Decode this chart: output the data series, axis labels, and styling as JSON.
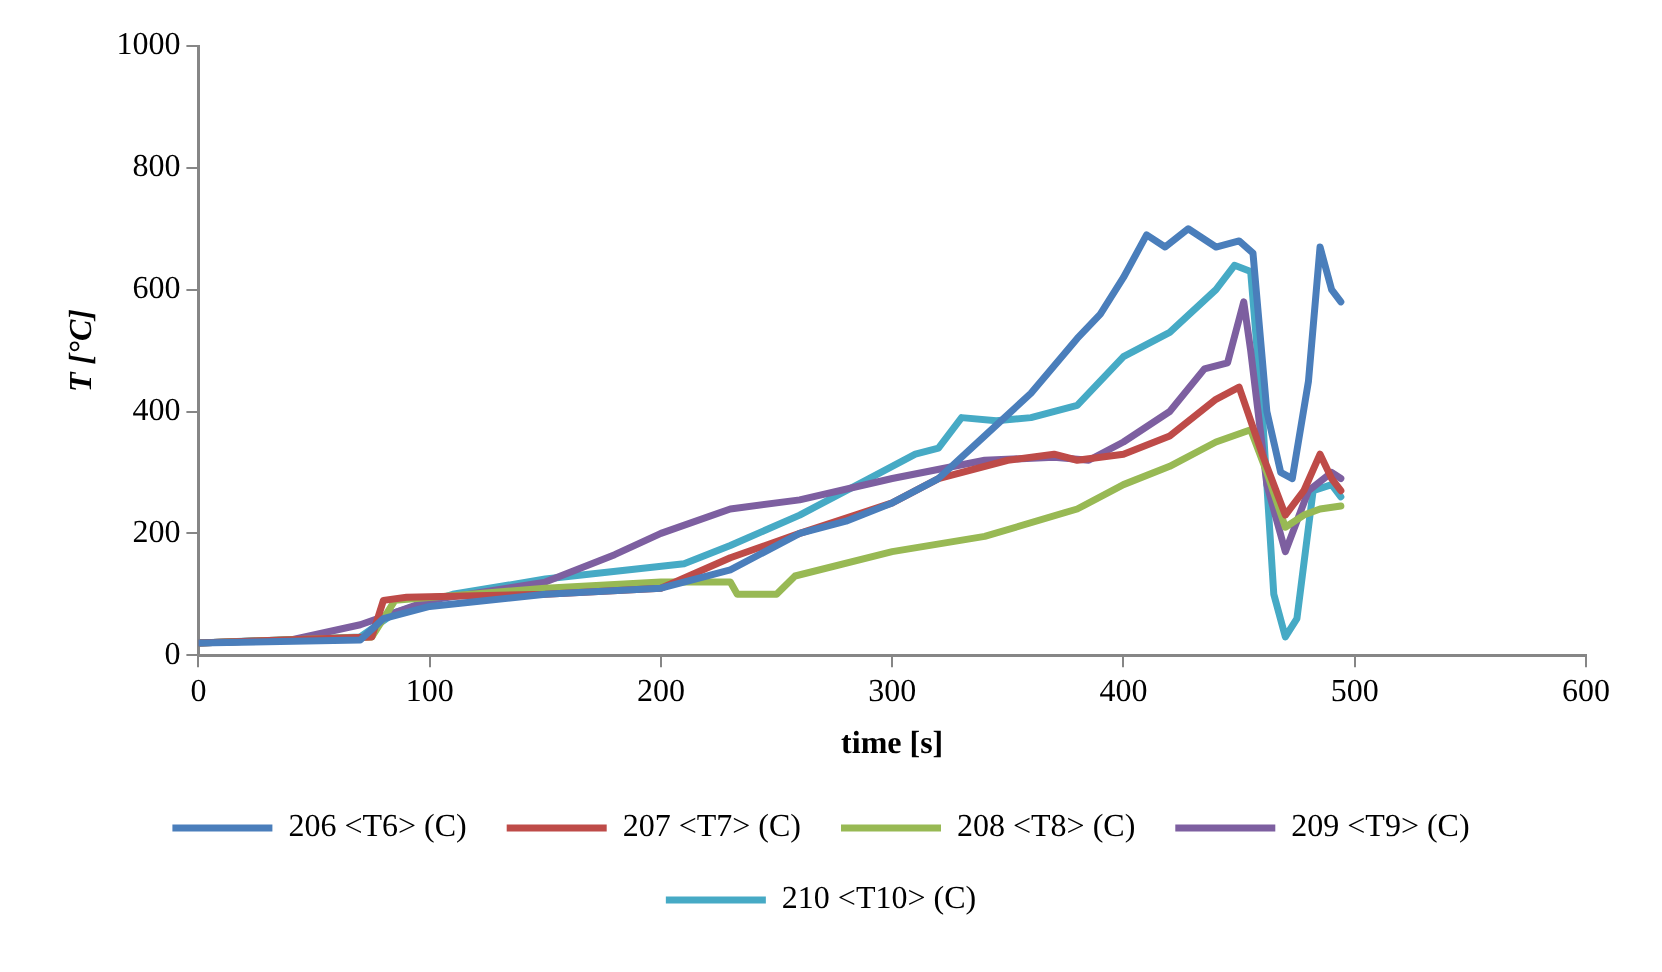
{
  "chart_data": {
    "type": "line",
    "xlabel": "time [s]",
    "ylabel": "T [°C]",
    "xlim": [
      0,
      600
    ],
    "xticks": [
      0,
      100,
      200,
      300,
      400,
      500,
      600
    ],
    "ylim": [
      0,
      1000
    ],
    "yticks": [
      0,
      200,
      400,
      600,
      800,
      1000
    ],
    "grid": false,
    "legend": "bottom",
    "marker": "none",
    "line_style": "solid",
    "series": [
      {
        "name": "206 <T6> (C)",
        "color": "#4a7ebb",
        "x": [
          0,
          70,
          80,
          100,
          150,
          200,
          230,
          260,
          280,
          300,
          320,
          340,
          360,
          380,
          390,
          400,
          410,
          418,
          428,
          440,
          450,
          456,
          462,
          468,
          473,
          480,
          485,
          490,
          494
        ],
        "values": [
          20,
          25,
          60,
          80,
          100,
          110,
          140,
          200,
          220,
          250,
          290,
          360,
          430,
          520,
          560,
          620,
          690,
          670,
          700,
          670,
          680,
          660,
          400,
          300,
          290,
          450,
          670,
          600,
          580
        ]
      },
      {
        "name": "207 <T7> (C)",
        "color": "#be4b48",
        "x": [
          0,
          75,
          80,
          90,
          150,
          200,
          230,
          260,
          300,
          320,
          350,
          370,
          380,
          400,
          420,
          440,
          450,
          460,
          470,
          478,
          485,
          490,
          494
        ],
        "values": [
          20,
          30,
          90,
          95,
          100,
          110,
          160,
          200,
          250,
          290,
          320,
          330,
          320,
          330,
          360,
          420,
          440,
          330,
          230,
          270,
          330,
          290,
          270
        ]
      },
      {
        "name": "208 <T8> (C)",
        "color": "#98b954",
        "x": [
          0,
          75,
          85,
          150,
          200,
          230,
          233,
          250,
          258,
          300,
          340,
          380,
          400,
          420,
          440,
          455,
          462,
          470,
          478,
          485,
          494
        ],
        "values": [
          20,
          30,
          90,
          110,
          120,
          120,
          100,
          100,
          130,
          170,
          195,
          240,
          280,
          310,
          350,
          370,
          300,
          210,
          230,
          240,
          245
        ]
      },
      {
        "name": "209 <T9> (C)",
        "color": "#7d5fa0",
        "x": [
          0,
          40,
          70,
          100,
          150,
          180,
          200,
          230,
          260,
          300,
          340,
          370,
          385,
          400,
          420,
          435,
          445,
          452,
          455,
          462,
          470,
          480,
          490,
          494
        ],
        "values": [
          20,
          25,
          50,
          90,
          120,
          165,
          200,
          240,
          255,
          290,
          320,
          325,
          320,
          350,
          400,
          470,
          480,
          580,
          500,
          280,
          170,
          270,
          300,
          290
        ]
      },
      {
        "name": "210 <T10> (C)",
        "color": "#46aac5",
        "x": [
          0,
          70,
          85,
          110,
          150,
          210,
          230,
          260,
          290,
          310,
          320,
          330,
          345,
          360,
          380,
          400,
          420,
          440,
          448,
          455,
          460,
          465,
          470,
          475,
          482,
          490,
          494
        ],
        "values": [
          20,
          30,
          70,
          100,
          125,
          150,
          180,
          230,
          290,
          330,
          340,
          390,
          385,
          390,
          410,
          490,
          530,
          600,
          640,
          630,
          400,
          100,
          30,
          60,
          270,
          280,
          260
        ]
      }
    ]
  }
}
